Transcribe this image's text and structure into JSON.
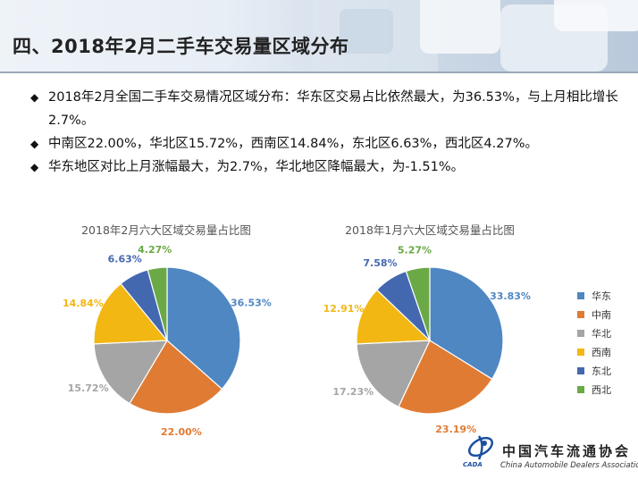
{
  "header": {
    "title": "四、2018年2月二手车交易量区域分布"
  },
  "bullets": [
    {
      "text": "2018年2月全国二手车交易情况区域分布：华东区交易占比依然最大，为36.53%，与上月相比增长2.7%。"
    },
    {
      "text": "中南区22.00%，华北区15.72%，西南区14.84%，东北区6.63%，西北区4.27%。"
    },
    {
      "text": "华东地区对比上月涨幅最大，为2.7%，华北地区降幅最大，为-1.51%。"
    }
  ],
  "bullet_icon": "diamond-icon",
  "legend": [
    {
      "label": "华东",
      "color": "#4f87c2"
    },
    {
      "label": "中南",
      "color": "#e07b34"
    },
    {
      "label": "华北",
      "color": "#a5a5a5"
    },
    {
      "label": "西南",
      "color": "#f2b713"
    },
    {
      "label": "东北",
      "color": "#4468b0"
    },
    {
      "label": "西北",
      "color": "#6aa946"
    }
  ],
  "chart_data": [
    {
      "type": "pie",
      "title": "2018年2月六大区域交易量占比图",
      "categories": [
        "华东",
        "中南",
        "华北",
        "西南",
        "东北",
        "西北"
      ],
      "values": [
        36.53,
        22.0,
        15.72,
        14.84,
        6.63,
        4.27
      ],
      "data_labels": [
        "36.53%",
        "22.00%",
        "15.72%",
        "14.84%",
        "6.63%",
        "4.27%"
      ],
      "colors": [
        "#4f87c2",
        "#e07b34",
        "#a5a5a5",
        "#f2b713",
        "#4468b0",
        "#6aa946"
      ],
      "legend_position": "right"
    },
    {
      "type": "pie",
      "title": "2018年1月六大区域交易量占比图",
      "categories": [
        "华东",
        "中南",
        "华北",
        "西南",
        "东北",
        "西北"
      ],
      "values": [
        33.83,
        23.19,
        17.23,
        12.91,
        7.58,
        5.27
      ],
      "data_labels": [
        "33.83%",
        "23.19%",
        "17.23%",
        "12.91%",
        "7.58%",
        "5.27%"
      ],
      "colors": [
        "#4f87c2",
        "#e07b34",
        "#a5a5a5",
        "#f2b713",
        "#4468b0",
        "#6aa946"
      ],
      "legend_position": "right"
    }
  ],
  "logo": {
    "name_cn": "中国汽车流通协会",
    "name_en": "China Automobile Dealers Association",
    "abbr": "CADA",
    "icon": "cada-logo-icon"
  }
}
